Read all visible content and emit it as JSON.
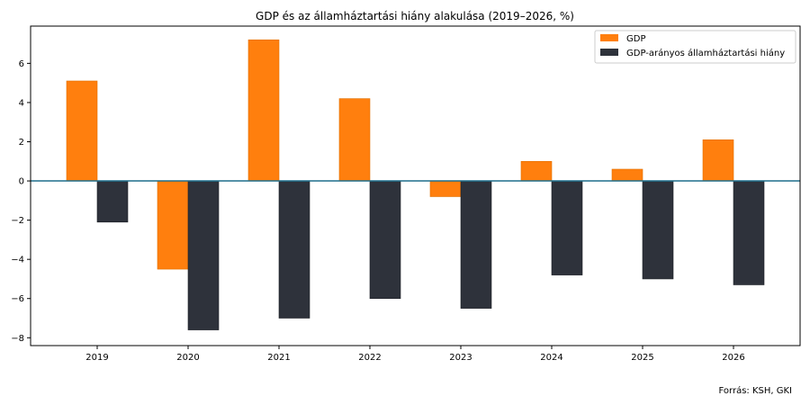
{
  "chart_data": {
    "type": "bar",
    "title": "GDP és az államháztartási hiány alakulása (2019–2026, %)",
    "xlabel": "",
    "ylabel": "",
    "categories": [
      "2019",
      "2020",
      "2021",
      "2022",
      "2023",
      "2024",
      "2025",
      "2026"
    ],
    "series": [
      {
        "name": "GDP",
        "color": "#ff7f0e",
        "values": [
          5.1,
          -4.5,
          7.2,
          4.2,
          -0.8,
          1.0,
          0.6,
          2.1
        ]
      },
      {
        "name": "GDP-arányos államháztartási hiány",
        "color": "#2e323b",
        "values": [
          -2.1,
          -7.6,
          -7.0,
          -6.0,
          -6.5,
          -4.8,
          -5.0,
          -5.3
        ]
      }
    ],
    "ylim": [
      -8.4,
      7.9
    ],
    "yticks": [
      -8,
      -6,
      -4,
      -2,
      0,
      2,
      4,
      6
    ],
    "ytick_labels": [
      "−8",
      "−6",
      "−4",
      "−2",
      "0",
      "2",
      "4",
      "6"
    ],
    "zero_line_color": "#1f6f8b",
    "legend_position": "top-right",
    "grid": false
  },
  "source_note": "Forrás: KSH, GKI"
}
